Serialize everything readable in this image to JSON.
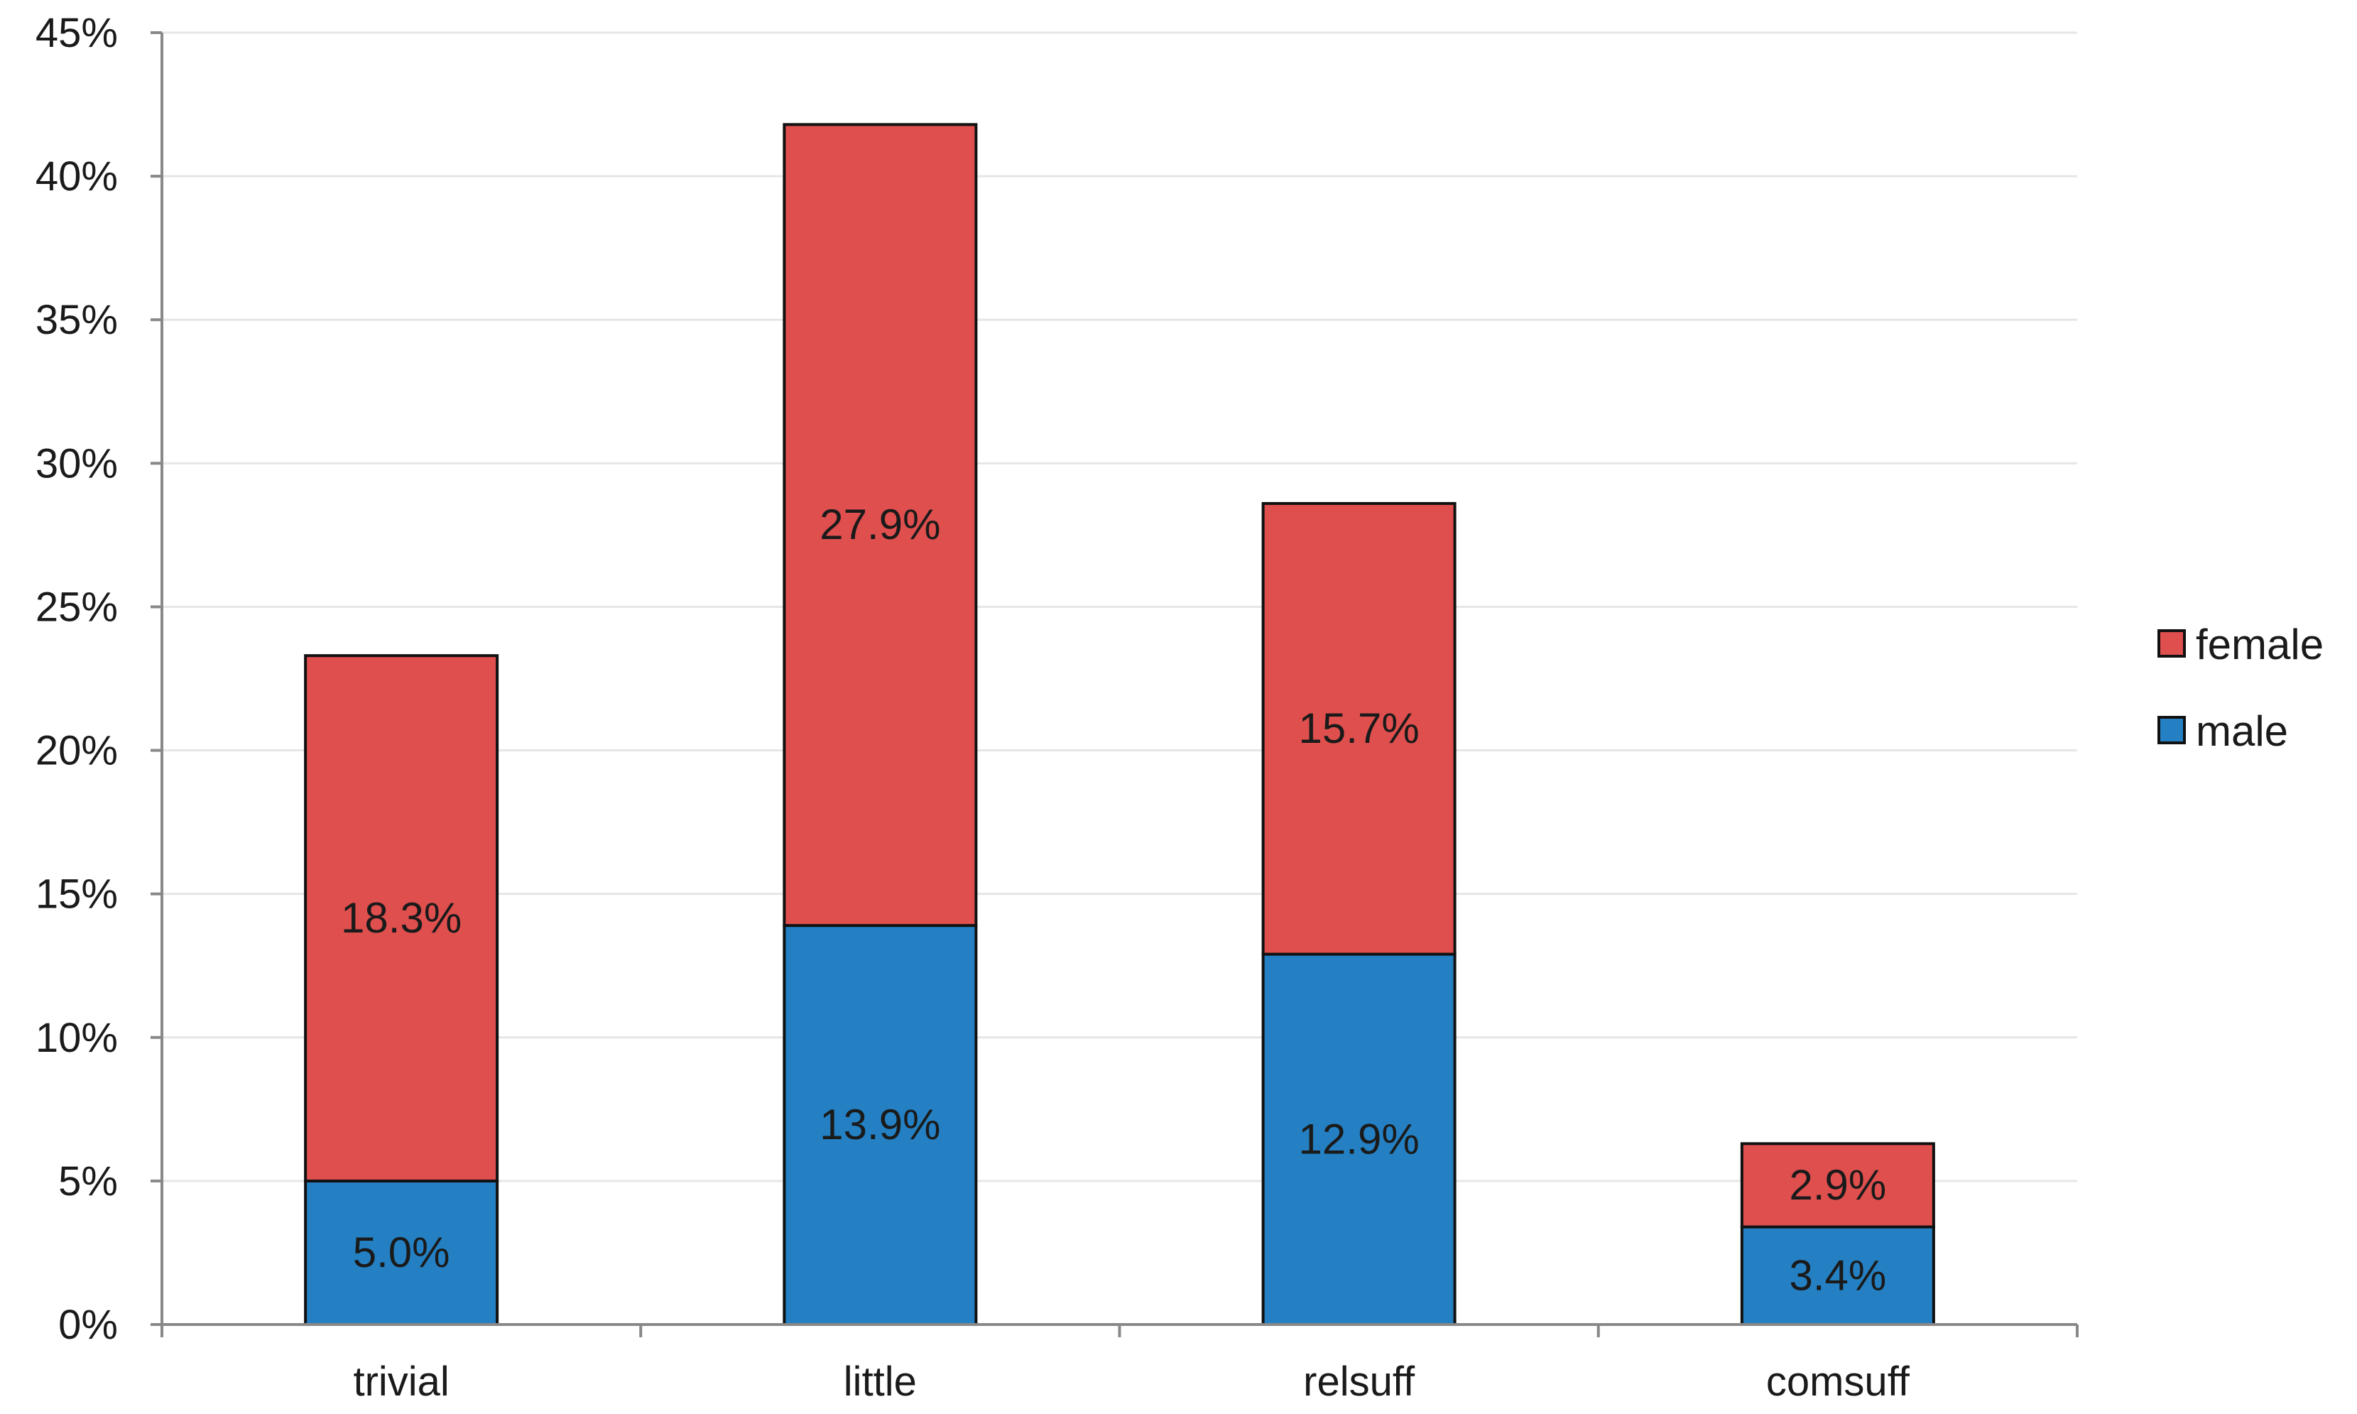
{
  "chart_data": {
    "type": "bar",
    "stacked": true,
    "categories": [
      "trivial",
      "little",
      "relsuff",
      "comsuff"
    ],
    "series": [
      {
        "name": "male",
        "values": [
          5.0,
          13.9,
          12.9,
          3.4
        ],
        "labels": [
          "5.0%",
          "13.9%",
          "12.9%",
          "3.4%"
        ],
        "color": "#2480C2"
      },
      {
        "name": "female",
        "values": [
          18.3,
          27.9,
          15.7,
          2.9
        ],
        "labels": [
          "18.3%",
          "27.9%",
          "15.7%",
          "2.9%"
        ],
        "color": "#DE4F4E"
      }
    ],
    "ylim": [
      0,
      45
    ],
    "yticks": [
      0,
      5,
      10,
      15,
      20,
      25,
      30,
      35,
      40,
      45
    ],
    "ytick_labels": [
      "0%",
      "5%",
      "10%",
      "15%",
      "20%",
      "25%",
      "30%",
      "35%",
      "40%",
      "45%"
    ],
    "grid": true,
    "legend": {
      "position": "right",
      "entries": [
        {
          "label": "female",
          "color": "#DE4F4E"
        },
        {
          "label": "male",
          "color": "#2480C2"
        }
      ]
    },
    "title": "",
    "xlabel": "",
    "ylabel": ""
  }
}
